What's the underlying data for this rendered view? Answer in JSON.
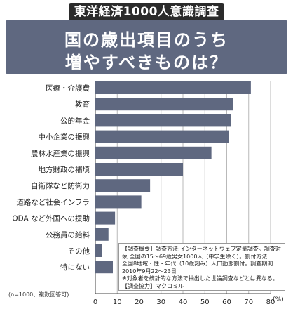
{
  "header": {
    "badge": "東洋経済1000人意識調査",
    "title_line1": "国の歳出項目のうち",
    "title_line2": "増やすべきものは？"
  },
  "colors": {
    "bar": "#5f6880",
    "band": "#5f6880",
    "badge": "#2b2b2b",
    "grid": "#b9b9b9"
  },
  "chart_data": {
    "type": "bar",
    "orientation": "horizontal",
    "categories": [
      "医療・介護費",
      "教育",
      "公的年金",
      "中小企業の振興",
      "農林水産業の振興",
      "地方財政の補填",
      "自衛隊など防衛力",
      "道路など社会インフラ",
      "ODA など外国への援助",
      "公務員の給料",
      "その他",
      "特にない"
    ],
    "values": [
      71,
      63,
      62,
      61,
      53,
      40,
      25,
      21,
      9,
      6,
      3,
      8
    ],
    "xlim": [
      0,
      80
    ],
    "xticks": [
      "0",
      "10",
      "20",
      "30",
      "40",
      "50",
      "60",
      "70",
      "80"
    ],
    "unit": "(%)",
    "grid": true
  },
  "note": {
    "lines": [
      "【調査概要】調査方法:インターネットウェブ定量調査。調査対",
      "象:全国の15～69歳男女1000人（中学生除く）。割付方法:",
      "全国8地域・性・年代（10歳刻み）人口動態割付。調査期間:",
      "2010年9月22～23日",
      "※対象者を統計的な方法で抽出した世論調査などとは異なる。",
      "【調査協力】マクロミル"
    ]
  },
  "footnote": "(n=1000、複数回答可)"
}
